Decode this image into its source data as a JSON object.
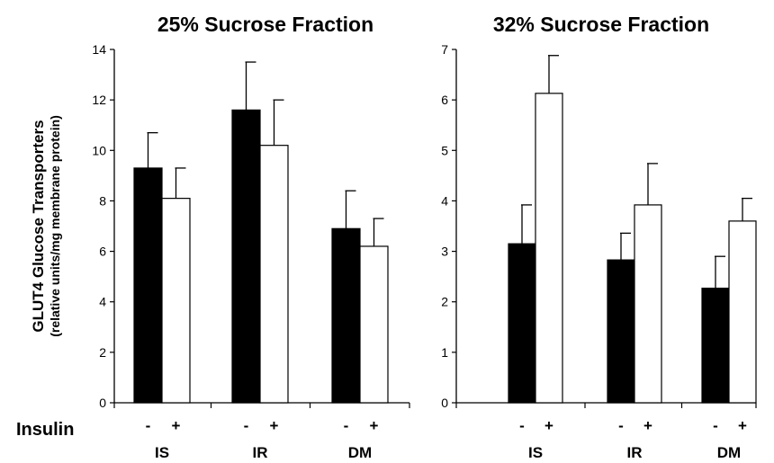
{
  "chart_data": [
    {
      "type": "bar",
      "title": "25% Sucrose Fraction",
      "ylabel": "GLUT4 Glucose Transporters",
      "ylabel_sub": "(relative units/mg membrane protein)",
      "ylim": [
        0,
        14
      ],
      "yticks": [
        "0",
        "2",
        "4",
        "6",
        "8",
        "10",
        "12",
        "14"
      ],
      "categories": [
        "IS",
        "IR",
        "DM"
      ],
      "subcategory_labels": [
        "-",
        "+"
      ],
      "subcategory_title": "Insulin",
      "series": [
        {
          "name": "-",
          "color": "#000000",
          "values": [
            9.3,
            11.6,
            6.9
          ],
          "errors": [
            1.4,
            1.9,
            1.5
          ]
        },
        {
          "name": "+",
          "color": "#ffffff",
          "values": [
            8.1,
            10.2,
            6.2
          ],
          "errors": [
            1.2,
            1.8,
            1.1
          ]
        }
      ],
      "grid": false,
      "legend": "none"
    },
    {
      "type": "bar",
      "title": "32% Sucrose Fraction",
      "ylabel": "",
      "ylim": [
        0,
        7
      ],
      "yticks": [
        "0",
        "1",
        "2",
        "3",
        "4",
        "5",
        "6",
        "7"
      ],
      "categories": [
        "IS",
        "IR",
        "DM"
      ],
      "subcategory_labels": [
        "-",
        "+"
      ],
      "series": [
        {
          "name": "-",
          "color": "#000000",
          "values": [
            3.15,
            2.83,
            2.27
          ],
          "errors": [
            0.77,
            0.53,
            0.63
          ]
        },
        {
          "name": "+",
          "color": "#ffffff",
          "values": [
            6.13,
            3.92,
            3.6
          ],
          "errors": [
            0.75,
            0.82,
            0.45
          ]
        }
      ],
      "grid": false,
      "legend": "none"
    }
  ]
}
